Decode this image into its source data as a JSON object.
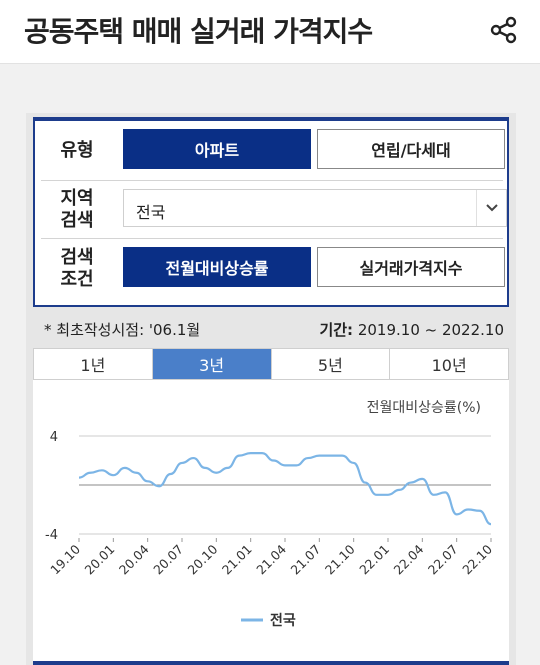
{
  "header": {
    "title": "공동주택 매매 실거래 가격지수",
    "share_icon": "share-icon"
  },
  "filters": {
    "type": {
      "label": "유형",
      "options": [
        "아파트",
        "연립/다세대"
      ],
      "selected": "아파트"
    },
    "region": {
      "label_line1": "지역",
      "label_line2": "검색",
      "value": "전국",
      "caret_icon": "chevron-down-icon"
    },
    "condition": {
      "label_line1": "검색",
      "label_line2": "조건",
      "options": [
        "전월대비상승률",
        "실거래가격지수"
      ],
      "selected": "전월대비상승률"
    }
  },
  "info": {
    "first_point": "* 최초작성시점: '06.1월",
    "period_label": "기간:",
    "period_value": "2019.10 ~ 2022.10"
  },
  "tabs": {
    "items": [
      "1년",
      "3년",
      "5년",
      "10년"
    ],
    "active": "3년"
  },
  "chart_data": {
    "type": "line",
    "title": "",
    "ylabel": "전월대비상승률(%)",
    "ylim": [
      -4,
      4
    ],
    "yticks": [
      "4",
      "-4"
    ],
    "xticks": [
      "19.10",
      "20.01",
      "20.04",
      "20.07",
      "20.10",
      "21.01",
      "21.04",
      "21.07",
      "21.10",
      "22.01",
      "22.04",
      "22.07",
      "22.10"
    ],
    "series": [
      {
        "name": "전국",
        "color": "#7cb5e6",
        "values": [
          0.6,
          1.0,
          1.2,
          0.8,
          1.4,
          1.0,
          0.3,
          -0.1,
          0.9,
          1.8,
          2.2,
          1.4,
          1.0,
          1.4,
          2.4,
          2.6,
          2.6,
          2.0,
          1.6,
          1.6,
          2.2,
          2.4,
          2.4,
          2.4,
          1.8,
          0.2,
          -0.8,
          -0.8,
          -0.4,
          0.2,
          0.5,
          -0.8,
          -0.6,
          -2.4,
          -2.0,
          -2.1,
          -3.2
        ]
      }
    ],
    "grid": "horizontal",
    "legend": "bottom"
  }
}
